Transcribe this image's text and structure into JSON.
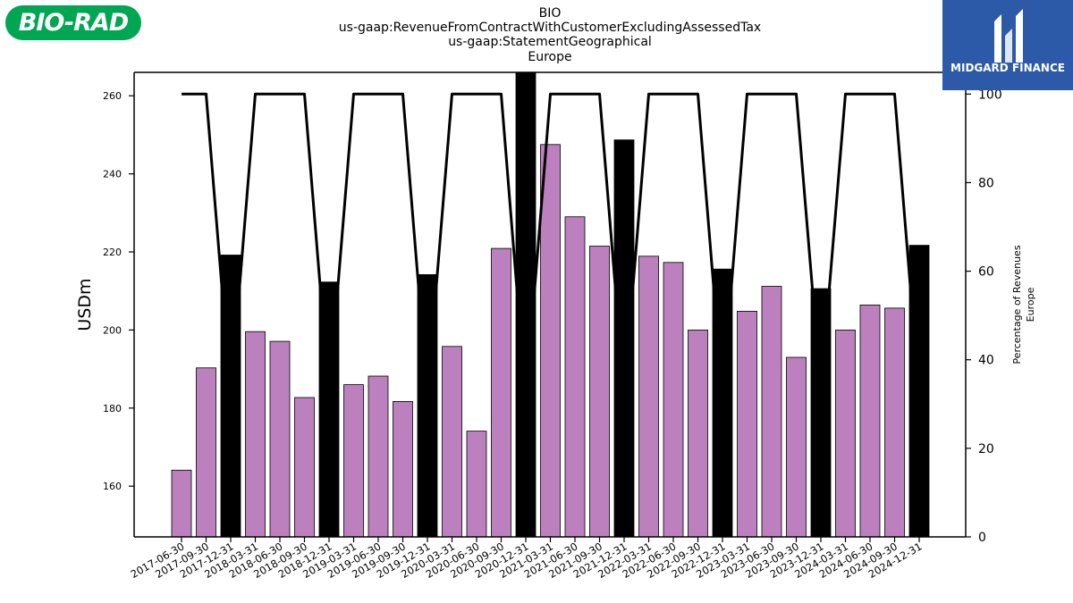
{
  "header": {
    "title_lines": [
      "BIO",
      "us-gaap:RevenueFromContractWithCustomerExcludingAssessedTax",
      "us-gaap:StatementGeographical",
      "Europe"
    ],
    "left_logo_text": "BIO-RAD",
    "right_logo_text": "MIDGARD FINANCE"
  },
  "colors": {
    "bar_normal": "#bb80bd",
    "bar_highlight": "#000000",
    "line": "#000000",
    "left_logo_bg": "#00a651",
    "right_logo_bg": "#2c5aa8"
  },
  "chart_data": {
    "type": "bar",
    "ylabel": "USDm",
    "y2label_lines": [
      "Percentage of Revenues",
      "Europe"
    ],
    "ylim": [
      147,
      266
    ],
    "y_ticks": [
      160,
      180,
      200,
      220,
      240,
      260
    ],
    "y2lim": [
      0,
      104.9
    ],
    "y2_ticks": [
      0,
      20,
      40,
      60,
      80,
      100
    ],
    "grid": false,
    "categories": [
      "2017-06-30",
      "2017-09-30",
      "2017-12-31",
      "2018-03-31",
      "2018-06-30",
      "2018-09-30",
      "2018-12-31",
      "2019-03-31",
      "2019-06-30",
      "2019-09-30",
      "2019-12-31",
      "2020-03-31",
      "2020-06-30",
      "2020-09-30",
      "2020-12-31",
      "2021-03-31",
      "2021-06-30",
      "2021-09-30",
      "2021-12-31",
      "2022-03-31",
      "2022-06-30",
      "2022-09-30",
      "2022-12-31",
      "2023-03-31",
      "2023-06-30",
      "2023-09-30",
      "2023-12-31",
      "2024-03-31",
      "2024-06-30",
      "2024-09-30",
      "2024-12-31"
    ],
    "series": [
      {
        "type": "bar",
        "values": [
          164.1,
          190.3,
          219.2,
          199.6,
          197.1,
          182.7,
          212.3,
          186.0,
          188.2,
          181.7,
          214.2,
          195.8,
          174.1,
          220.9,
          266.0,
          247.5,
          229.0,
          221.5,
          248.7,
          218.9,
          217.3,
          200.0,
          215.6,
          204.8,
          211.2,
          193.0,
          210.6,
          200.0,
          206.4,
          205.6,
          221.7
        ],
        "highlight": [
          false,
          false,
          true,
          false,
          false,
          false,
          true,
          false,
          false,
          false,
          true,
          false,
          false,
          false,
          true,
          false,
          false,
          false,
          true,
          false,
          false,
          false,
          true,
          false,
          false,
          false,
          true,
          false,
          false,
          false,
          true
        ]
      },
      {
        "type": "line",
        "axis": "right",
        "values": [
          100,
          100,
          32,
          100,
          100,
          100,
          32,
          100,
          100,
          100,
          32,
          100,
          100,
          100,
          31,
          100,
          100,
          100,
          32,
          100,
          100,
          100,
          32,
          100,
          100,
          100,
          33,
          100,
          100,
          100,
          32
        ]
      }
    ]
  }
}
